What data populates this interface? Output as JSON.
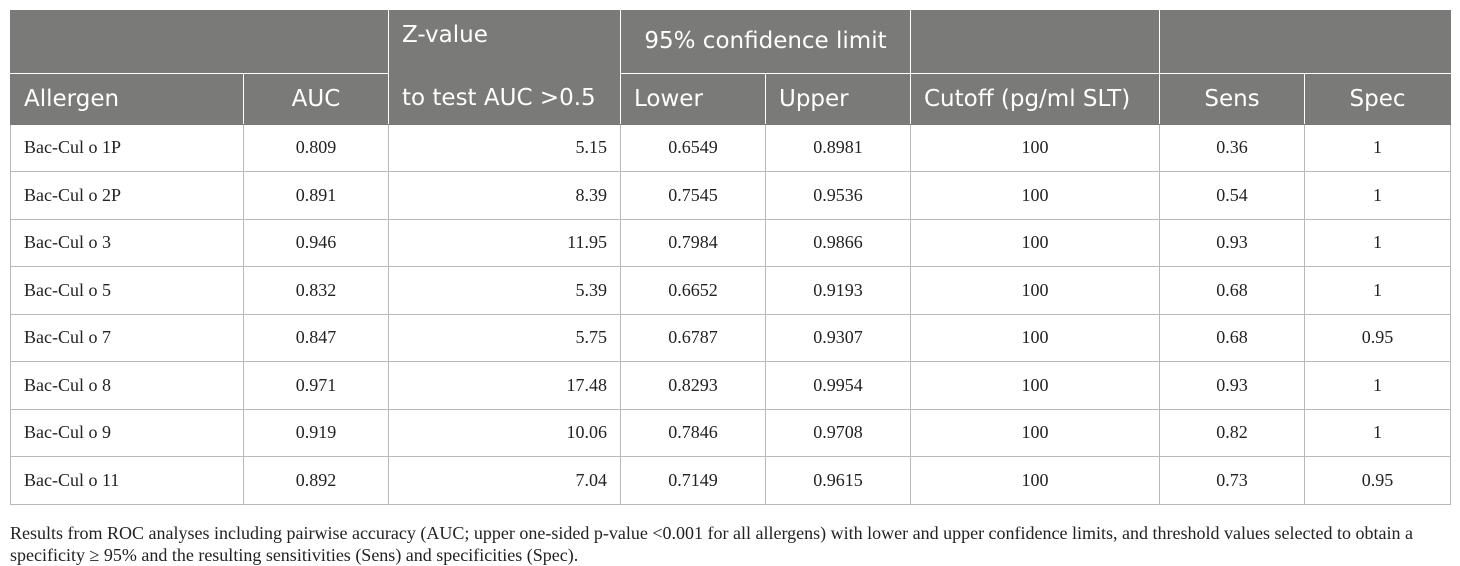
{
  "header": {
    "z_value_line1": "Z-value",
    "z_value_line2": "to test AUC >0.5",
    "ci_group": "95% confidence limit",
    "allergen": "Allergen",
    "auc": "AUC",
    "lower": "Lower",
    "upper": "Upper",
    "cutoff": "Cutoff (pg/ml SLT)",
    "sens": "Sens",
    "spec": "Spec"
  },
  "rows": [
    {
      "allergen": "Bac-Cul o 1P",
      "auc": "0.809",
      "z": "5.15",
      "lower": "0.6549",
      "upper": "0.8981",
      "cutoff": "100",
      "sens": "0.36",
      "spec": "1"
    },
    {
      "allergen": "Bac-Cul o 2P",
      "auc": "0.891",
      "z": "8.39",
      "lower": "0.7545",
      "upper": "0.9536",
      "cutoff": "100",
      "sens": "0.54",
      "spec": "1"
    },
    {
      "allergen": "Bac-Cul o 3",
      "auc": "0.946",
      "z": "11.95",
      "lower": "0.7984",
      "upper": "0.9866",
      "cutoff": "100",
      "sens": "0.93",
      "spec": "1"
    },
    {
      "allergen": "Bac-Cul o 5",
      "auc": "0.832",
      "z": "5.39",
      "lower": "0.6652",
      "upper": "0.9193",
      "cutoff": "100",
      "sens": "0.68",
      "spec": "1"
    },
    {
      "allergen": "Bac-Cul o 7",
      "auc": "0.847",
      "z": "5.75",
      "lower": "0.6787",
      "upper": "0.9307",
      "cutoff": "100",
      "sens": "0.68",
      "spec": "0.95"
    },
    {
      "allergen": "Bac-Cul o 8",
      "auc": "0.971",
      "z": "17.48",
      "lower": "0.8293",
      "upper": "0.9954",
      "cutoff": "100",
      "sens": "0.93",
      "spec": "1"
    },
    {
      "allergen": "Bac-Cul o 9",
      "auc": "0.919",
      "z": "10.06",
      "lower": "0.7846",
      "upper": "0.9708",
      "cutoff": "100",
      "sens": "0.82",
      "spec": "1"
    },
    {
      "allergen": "Bac-Cul o 11",
      "auc": "0.892",
      "z": "7.04",
      "lower": "0.7149",
      "upper": "0.9615",
      "cutoff": "100",
      "sens": "0.73",
      "spec": "0.95"
    }
  ],
  "footnote": "Results from ROC analyses including pairwise accuracy (AUC; upper one-sided p-value <0.001 for all allergens) with lower and upper confidence limits, and threshold values selected to obtain a specificity ≥ 95% and the resulting sensitivities (Sens) and specificities (Spec).",
  "colors": {
    "header_bg": "#7a7a78",
    "header_text": "#ffffff",
    "grid": "#b9b9b9"
  }
}
